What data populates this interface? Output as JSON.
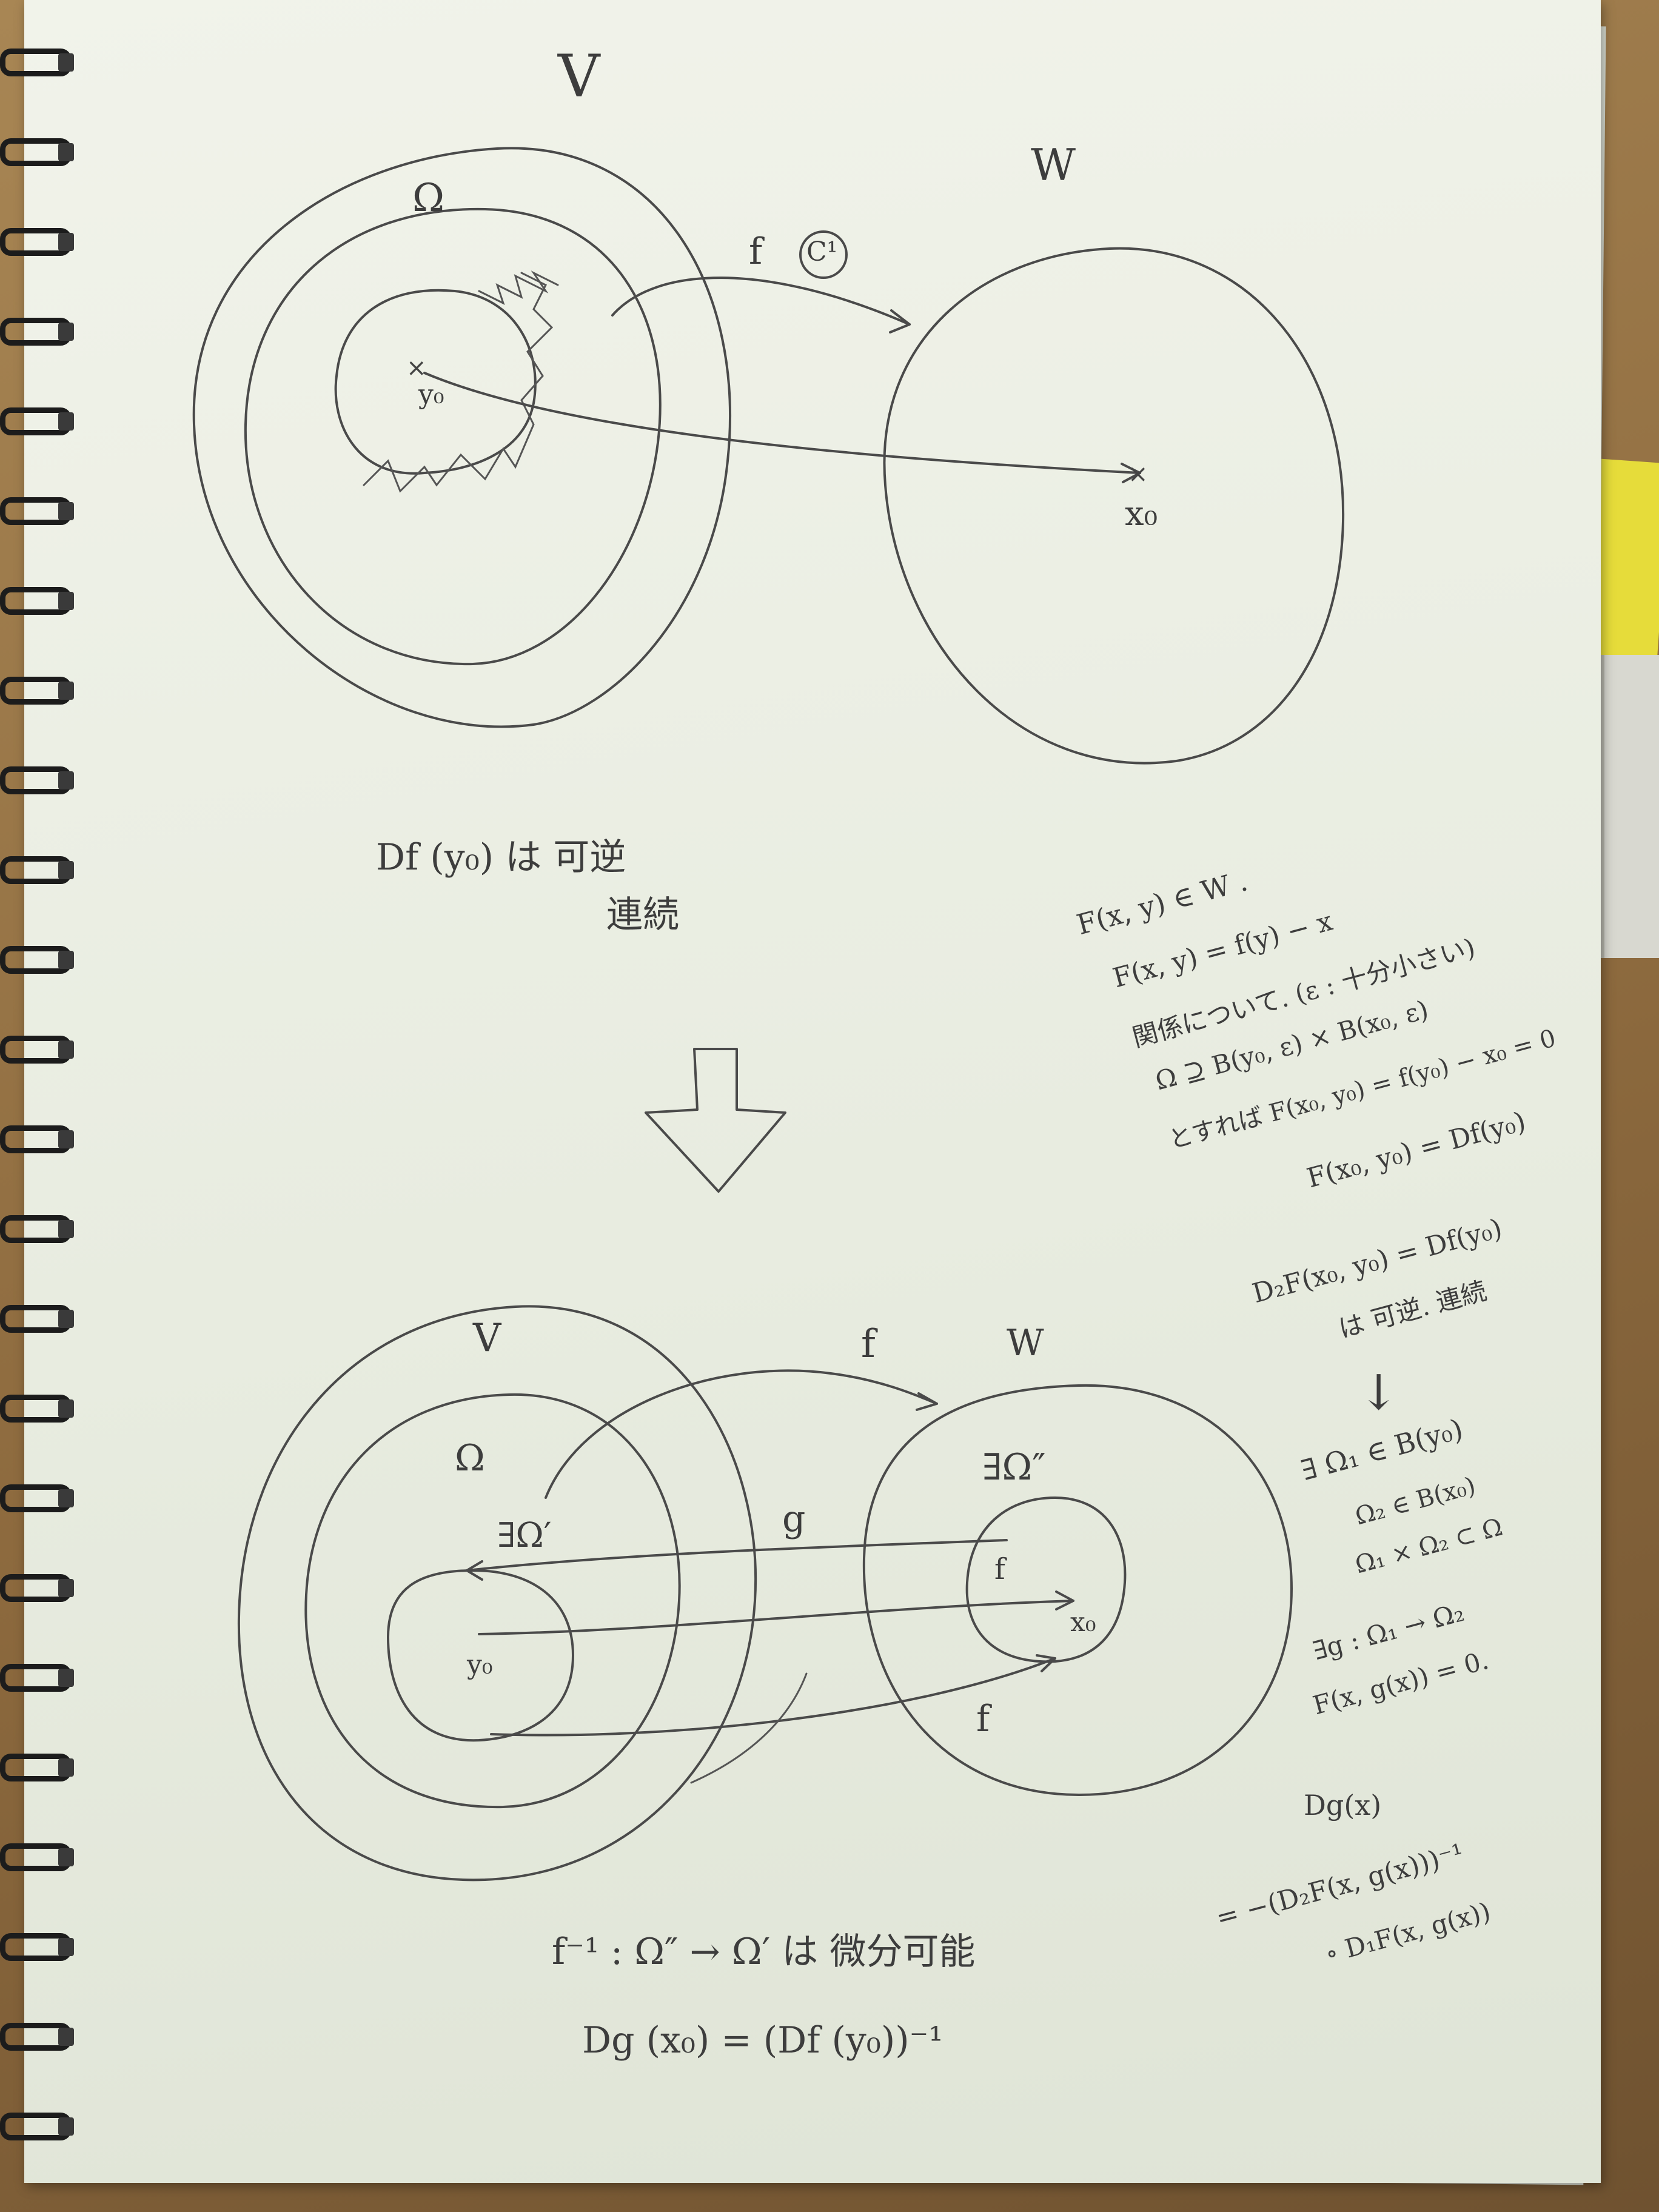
{
  "top_diagram": {
    "label_V": "V",
    "label_W": "W",
    "label_Omega": "Ω",
    "label_f": "f",
    "label_circled": "C¹",
    "label_y0": "y₀",
    "label_x0": "x₀"
  },
  "note_left": {
    "line1": "Df (y₀) は 可逆",
    "line2": "連続"
  },
  "notes_right": [
    "F(x, y) ∈ W .",
    "F(x, y) = f(y) − x",
    "関係について. (ε : 十分小さい)",
    "Ω ⊇ B(y₀, ε) × B(x₀, ε)",
    "とすれば F(x₀, y₀) = f(y₀) − x₀ = 0",
    "F(x₀, y₀) = Df(y₀)",
    "D₂F(x₀, y₀) = Df(y₀)",
    "は 可逆. 連続"
  ],
  "down_arrow": "⇓",
  "bottom_diagram": {
    "label_V": "V",
    "label_W": "W",
    "label_Omega": "Ω",
    "label_Omega_prime": "∃Ω′",
    "label_Omega_dprime": "∃Ω″",
    "label_f_top": "f",
    "label_g": "g",
    "label_f_right": "f",
    "label_f_bottom": "f",
    "label_y0": "y₀",
    "label_x0": "x₀"
  },
  "notes_bottom_right": [
    "∃ Ω₁ ∈ B(y₀)",
    "Ω₂ ∈ B(x₀)",
    "Ω₁ × Ω₂ ⊂ Ω",
    "∃g : Ω₁ → Ω₂",
    "F(x, g(x)) = 0.",
    "Dg(x)",
    "= −(D₂F(x, g(x)))⁻¹",
    "∘ D₁F(x, g(x))"
  ],
  "bottom_text": {
    "line1": "f⁻¹ :  Ω″ → Ω′ は 微分可能",
    "line2": "Dg (x₀) = (Df (y₀))⁻¹"
  }
}
